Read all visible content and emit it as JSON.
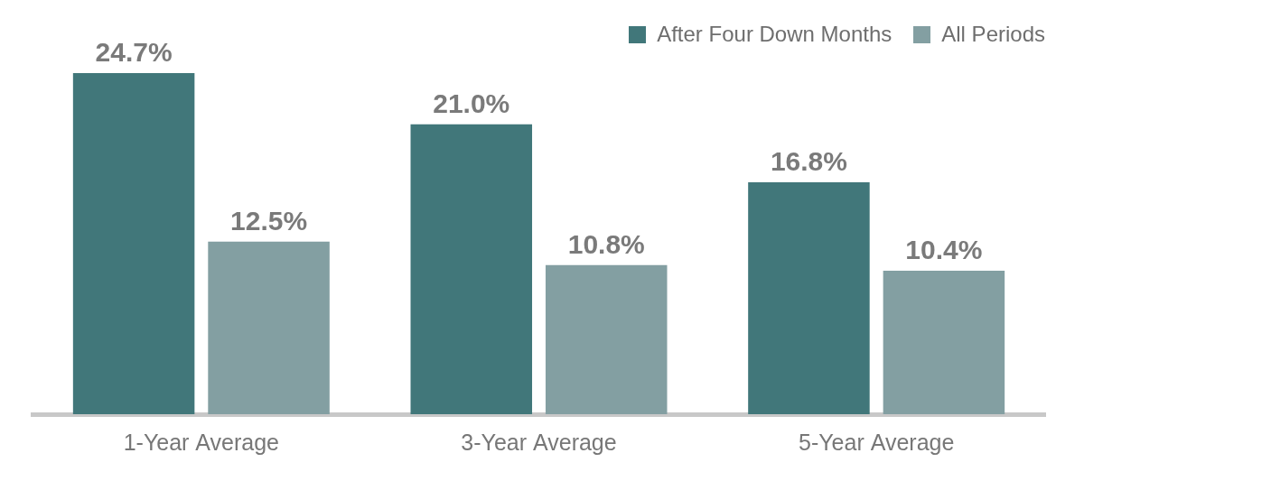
{
  "chart_data": {
    "type": "bar",
    "categories": [
      "1-Year Average",
      "3-Year Average",
      "5-Year Average"
    ],
    "series": [
      {
        "name": "After Four Down Months",
        "color": "#41777a",
        "values": [
          24.7,
          21.0,
          16.8
        ],
        "value_labels": [
          "24.7%",
          "21.0%",
          "16.8%"
        ]
      },
      {
        "name": "All Periods",
        "color": "#839fa2",
        "values": [
          12.5,
          10.8,
          10.4
        ],
        "value_labels": [
          "12.5%",
          "10.8%",
          "10.4%"
        ]
      }
    ],
    "ylim": [
      0,
      30
    ],
    "grid": false,
    "legend": "upper right",
    "data_labels": true,
    "tick_labels": "x"
  }
}
